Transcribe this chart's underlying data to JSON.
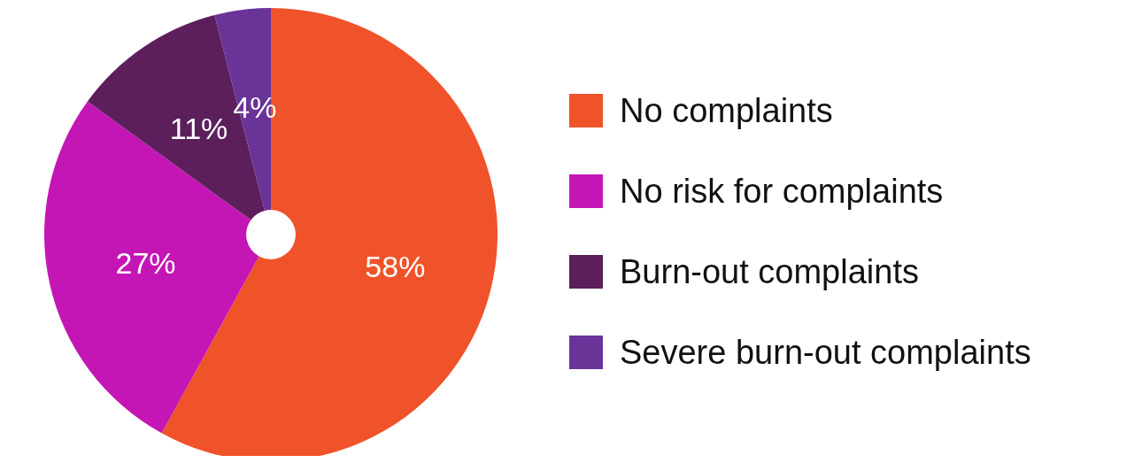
{
  "chart_data": {
    "type": "pie",
    "categories": [
      "No complaints",
      "No risk for complaints",
      "Burn-out complaints",
      "Severe burn-out complaints"
    ],
    "values": [
      58,
      27,
      11,
      4
    ],
    "colors": [
      "#f0522a",
      "#c416b5",
      "#5c1f5c",
      "#6a3398"
    ],
    "value_labels": [
      "58%",
      "27%",
      "11%",
      "4%"
    ],
    "legend": "right"
  }
}
